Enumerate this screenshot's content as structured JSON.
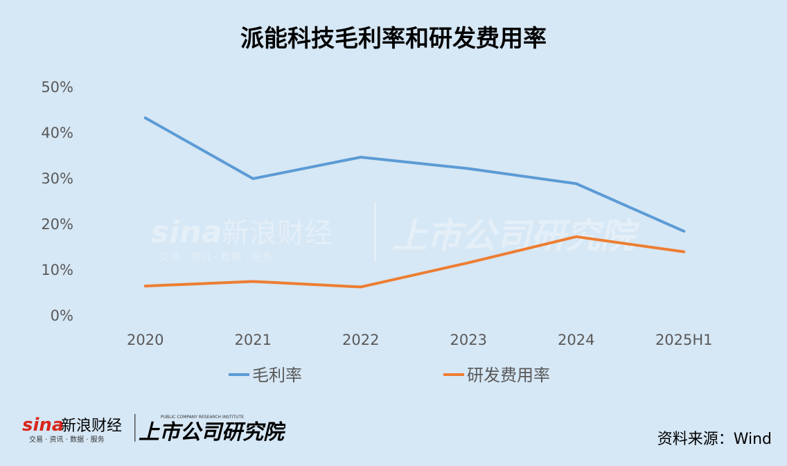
{
  "chart_data": {
    "type": "line",
    "title": "派能科技毛利率和研发费用率",
    "categories": [
      "2020",
      "2021",
      "2022",
      "2023",
      "2024",
      "2025H1"
    ],
    "y_ticks": [
      "50%",
      "40%",
      "30%",
      "20%",
      "10%",
      "0%"
    ],
    "ylim": [
      0,
      50
    ],
    "grid": false,
    "legend_position": "bottom",
    "series": [
      {
        "name": "毛利率",
        "color": "#5b9bd5",
        "values": [
          43.3,
          30.0,
          34.7,
          32.2,
          28.9,
          18.5
        ]
      },
      {
        "name": "研发费用率",
        "color": "#ed7d31",
        "values": [
          6.5,
          7.5,
          6.3,
          11.6,
          17.3,
          14.0
        ]
      }
    ]
  },
  "source": "资料来源：Wind",
  "watermark": {
    "brand": "sina新浪财经",
    "brand_tagline": "交易 · 资讯 · 数据 · 服务",
    "institute": "上市公司研究院",
    "institute_en": "PUBLIC COMPANY RESEARCH INSTITUTE"
  }
}
